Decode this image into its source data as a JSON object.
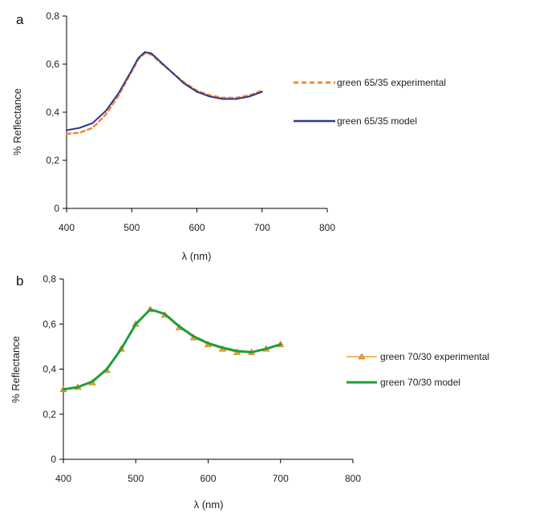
{
  "chart_data": [
    {
      "panel_label": "a",
      "type": "line",
      "xlabel": "λ (nm)",
      "ylabel": "% Reflectance",
      "xlim": [
        400,
        800
      ],
      "ylim": [
        0,
        0.8
      ],
      "xticks": [
        "400",
        "500",
        "600",
        "700",
        "800"
      ],
      "yticks": [
        "0",
        "0,2",
        "0,4",
        "0,6",
        "0,8"
      ],
      "legend_position": "right",
      "series": [
        {
          "name": "green 65/35 experimental",
          "color": "#ee8a3a",
          "style": "dashed",
          "x": [
            400,
            420,
            440,
            460,
            480,
            500,
            510,
            520,
            530,
            540,
            560,
            580,
            600,
            620,
            640,
            660,
            680,
            700
          ],
          "y": [
            0.31,
            0.315,
            0.335,
            0.39,
            0.47,
            0.57,
            0.62,
            0.645,
            0.64,
            0.615,
            0.57,
            0.525,
            0.49,
            0.47,
            0.46,
            0.46,
            0.47,
            0.49
          ]
        },
        {
          "name": "green 65/35 model",
          "color": "#2e3a8c",
          "style": "solid",
          "x": [
            400,
            420,
            440,
            460,
            480,
            500,
            510,
            520,
            530,
            540,
            560,
            580,
            600,
            620,
            640,
            660,
            680,
            700
          ],
          "y": [
            0.325,
            0.335,
            0.355,
            0.405,
            0.48,
            0.575,
            0.625,
            0.65,
            0.645,
            0.62,
            0.57,
            0.52,
            0.485,
            0.465,
            0.455,
            0.455,
            0.465,
            0.485
          ]
        }
      ]
    },
    {
      "panel_label": "b",
      "type": "line",
      "xlabel": "λ (nm)",
      "ylabel": "% Reflectance",
      "xlim": [
        400,
        800
      ],
      "ylim": [
        0,
        0.8
      ],
      "xticks": [
        "400",
        "500",
        "600",
        "700",
        "800"
      ],
      "yticks": [
        "0",
        "0,2",
        "0,4",
        "0,6",
        "0,8"
      ],
      "legend_position": "right",
      "series": [
        {
          "name": "green 70/30 experimental",
          "color": "#f0a030",
          "style": "marker-triangle",
          "x": [
            400,
            420,
            440,
            460,
            480,
            500,
            520,
            540,
            560,
            580,
            600,
            620,
            640,
            660,
            680,
            700
          ],
          "y": [
            0.31,
            0.32,
            0.34,
            0.395,
            0.49,
            0.6,
            0.665,
            0.64,
            0.585,
            0.54,
            0.51,
            0.49,
            0.475,
            0.475,
            0.49,
            0.51
          ]
        },
        {
          "name": "green 70/30 model",
          "color": "#1f9e3a",
          "style": "solid-thick",
          "x": [
            400,
            420,
            440,
            460,
            480,
            500,
            520,
            540,
            560,
            580,
            600,
            620,
            640,
            660,
            680,
            700
          ],
          "y": [
            0.31,
            0.32,
            0.345,
            0.4,
            0.49,
            0.6,
            0.665,
            0.645,
            0.59,
            0.545,
            0.515,
            0.495,
            0.48,
            0.475,
            0.49,
            0.51
          ]
        }
      ]
    }
  ]
}
